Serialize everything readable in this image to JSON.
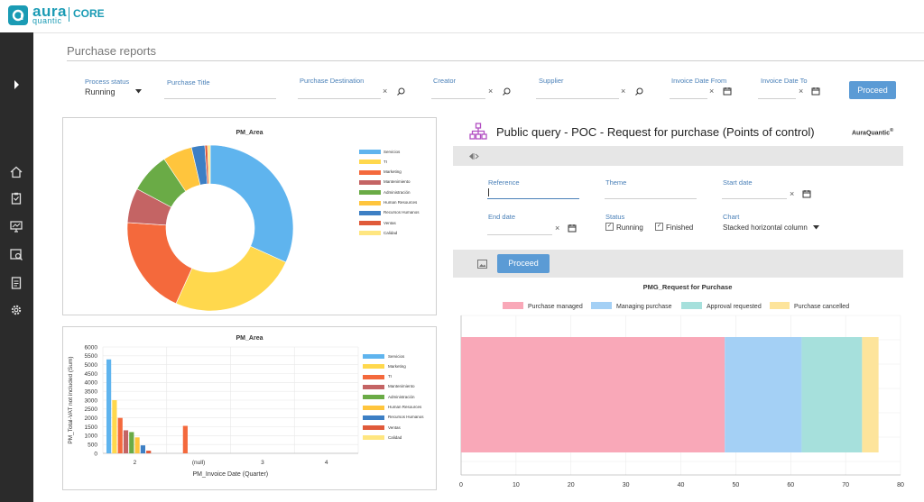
{
  "app": {
    "logo_top": "aura",
    "logo_bottom": "quantic",
    "product": "CORE"
  },
  "page": {
    "title": "Purchase reports"
  },
  "filters": {
    "process_status_label": "Process status",
    "process_status_value": "Running",
    "purchase_title_label": "Purchase Title",
    "purchase_destination_label": "Purchase Destination",
    "creator_label": "Creator",
    "supplier_label": "Supplier",
    "invoice_date_from_label": "Invoice Date From",
    "invoice_date_to_label": "Invoice Date To",
    "proceed_label": "Proceed",
    "clear_glyph": "×"
  },
  "donut": {
    "title": "PM_Area",
    "legend": [
      "Servicios",
      "TI",
      "Marketing",
      "Mantenimiento",
      "Administración",
      "Human Resources",
      "Recursos Humanos",
      "Ventas",
      "Calidad"
    ],
    "colors": [
      "#5fb4ee",
      "#ffd84d",
      "#f4693c",
      "#c46464",
      "#6aab46",
      "#ffc53d",
      "#3d7fc4",
      "#e05a3a",
      "#ffe680"
    ],
    "values": [
      30.5,
      24,
      18.5,
      6.5,
      7.5,
      5.5,
      2.5,
      0.5,
      0.5
    ]
  },
  "bar": {
    "title": "PM_Area",
    "ylabel": "PM_Total-VAT not included (Sum)",
    "xlabel": "PM_Invoice Date (Quarter)",
    "yticks": [
      "0",
      "500",
      "1000",
      "1500",
      "2000",
      "2500",
      "3000",
      "3500",
      "4000",
      "4500",
      "5000",
      "5500",
      "6000"
    ],
    "categories": [
      "2",
      "(null)",
      "3",
      "4"
    ],
    "legend": [
      "Servicios",
      "Marketing",
      "TI",
      "Mantenimiento",
      "Administración",
      "Human Resources",
      "Recursos Humanos",
      "Ventas",
      "Calidad"
    ],
    "colors": [
      "#5fb4ee",
      "#ffd84d",
      "#f4693c",
      "#c46464",
      "#6aab46",
      "#ffc53d",
      "#3d7fc4",
      "#e05a3a",
      "#ffe680"
    ]
  },
  "query": {
    "title": "Public query - POC - Request for purchase (Points of control)",
    "brand": "AuraQuantic",
    "brand_mark": "®",
    "reference_label": "Reference",
    "theme_label": "Theme",
    "start_date_label": "Start date",
    "end_date_label": "End date",
    "status_label": "Status",
    "status_running": "Running",
    "status_finished": "Finished",
    "check_glyph": "✓",
    "chart_label": "Chart",
    "chart_value": "Stacked horizontal column",
    "proceed_label": "Proceed"
  },
  "chart_data": [
    {
      "type": "pie",
      "title": "PM_Area",
      "categories": [
        "Servicios",
        "TI",
        "Marketing",
        "Mantenimiento",
        "Administración",
        "Human Resources",
        "Recursos Humanos",
        "Ventas",
        "Calidad"
      ],
      "values": [
        30.5,
        24,
        18.5,
        6.5,
        7.5,
        5.5,
        2.5,
        0.5,
        0.5
      ]
    },
    {
      "type": "bar",
      "title": "PM_Area",
      "xlabel": "PM_Invoice Date (Quarter)",
      "ylabel": "PM_Total-VAT not included (Sum)",
      "categories": [
        "2",
        "(null)",
        "3",
        "4"
      ],
      "ylim": [
        0,
        6000
      ],
      "series": [
        {
          "name": "Servicios",
          "values": [
            5300,
            0,
            0,
            0
          ]
        },
        {
          "name": "Marketing",
          "values": [
            3000,
            0,
            0,
            0
          ]
        },
        {
          "name": "TI",
          "values": [
            2000,
            1550,
            0,
            0
          ]
        },
        {
          "name": "Mantenimiento",
          "values": [
            1300,
            0,
            0,
            0
          ]
        },
        {
          "name": "Administración",
          "values": [
            1200,
            0,
            0,
            0
          ]
        },
        {
          "name": "Human Resources",
          "values": [
            900,
            0,
            0,
            0
          ]
        },
        {
          "name": "Recursos Humanos",
          "values": [
            450,
            0,
            0,
            0
          ]
        },
        {
          "name": "Ventas",
          "values": [
            150,
            0,
            0,
            0
          ]
        },
        {
          "name": "Calidad",
          "values": [
            0,
            0,
            0,
            0
          ]
        }
      ]
    },
    {
      "type": "bar",
      "orientation": "horizontal",
      "stacked": true,
      "title": "PMG_Request for Purchase",
      "xlim": [
        0,
        80
      ],
      "xticks": [
        "0",
        "10",
        "20",
        "30",
        "40",
        "50",
        "60",
        "70",
        "80"
      ],
      "series": [
        {
          "name": "Purchase managed",
          "value": 48,
          "color": "#f9a8b8"
        },
        {
          "name": "Managing purchase",
          "value": 14,
          "color": "#a4d0f5"
        },
        {
          "name": "Approval requested",
          "value": 11,
          "color": "#a6e0dc"
        },
        {
          "name": "Purchase cancelled",
          "value": 3,
          "color": "#fde49b"
        }
      ]
    }
  ]
}
